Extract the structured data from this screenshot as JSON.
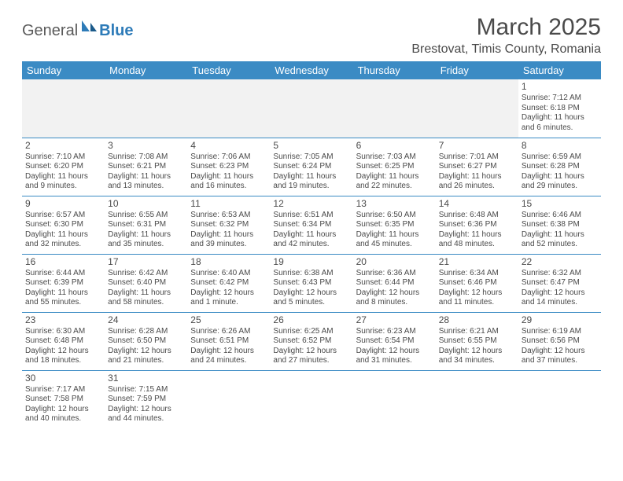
{
  "brand": {
    "general": "General",
    "blue": "Blue"
  },
  "title": "March 2025",
  "location": "Brestovat, Timis County, Romania",
  "colors": {
    "header_bg": "#3b8bc4",
    "header_text": "#ffffff",
    "empty_bg": "#f2f2f2",
    "row_border": "#3b8bc4",
    "body_text": "#4a4a4a",
    "logo_blue": "#2d7bb8"
  },
  "day_labels": [
    "Sunday",
    "Monday",
    "Tuesday",
    "Wednesday",
    "Thursday",
    "Friday",
    "Saturday"
  ],
  "weeks": [
    [
      null,
      null,
      null,
      null,
      null,
      null,
      {
        "n": "1",
        "sunrise": "7:12 AM",
        "sunset": "6:18 PM",
        "daylight": "11 hours and 6 minutes."
      }
    ],
    [
      {
        "n": "2",
        "sunrise": "7:10 AM",
        "sunset": "6:20 PM",
        "daylight": "11 hours and 9 minutes."
      },
      {
        "n": "3",
        "sunrise": "7:08 AM",
        "sunset": "6:21 PM",
        "daylight": "11 hours and 13 minutes."
      },
      {
        "n": "4",
        "sunrise": "7:06 AM",
        "sunset": "6:23 PM",
        "daylight": "11 hours and 16 minutes."
      },
      {
        "n": "5",
        "sunrise": "7:05 AM",
        "sunset": "6:24 PM",
        "daylight": "11 hours and 19 minutes."
      },
      {
        "n": "6",
        "sunrise": "7:03 AM",
        "sunset": "6:25 PM",
        "daylight": "11 hours and 22 minutes."
      },
      {
        "n": "7",
        "sunrise": "7:01 AM",
        "sunset": "6:27 PM",
        "daylight": "11 hours and 26 minutes."
      },
      {
        "n": "8",
        "sunrise": "6:59 AM",
        "sunset": "6:28 PM",
        "daylight": "11 hours and 29 minutes."
      }
    ],
    [
      {
        "n": "9",
        "sunrise": "6:57 AM",
        "sunset": "6:30 PM",
        "daylight": "11 hours and 32 minutes."
      },
      {
        "n": "10",
        "sunrise": "6:55 AM",
        "sunset": "6:31 PM",
        "daylight": "11 hours and 35 minutes."
      },
      {
        "n": "11",
        "sunrise": "6:53 AM",
        "sunset": "6:32 PM",
        "daylight": "11 hours and 39 minutes."
      },
      {
        "n": "12",
        "sunrise": "6:51 AM",
        "sunset": "6:34 PM",
        "daylight": "11 hours and 42 minutes."
      },
      {
        "n": "13",
        "sunrise": "6:50 AM",
        "sunset": "6:35 PM",
        "daylight": "11 hours and 45 minutes."
      },
      {
        "n": "14",
        "sunrise": "6:48 AM",
        "sunset": "6:36 PM",
        "daylight": "11 hours and 48 minutes."
      },
      {
        "n": "15",
        "sunrise": "6:46 AM",
        "sunset": "6:38 PM",
        "daylight": "11 hours and 52 minutes."
      }
    ],
    [
      {
        "n": "16",
        "sunrise": "6:44 AM",
        "sunset": "6:39 PM",
        "daylight": "11 hours and 55 minutes."
      },
      {
        "n": "17",
        "sunrise": "6:42 AM",
        "sunset": "6:40 PM",
        "daylight": "11 hours and 58 minutes."
      },
      {
        "n": "18",
        "sunrise": "6:40 AM",
        "sunset": "6:42 PM",
        "daylight": "12 hours and 1 minute."
      },
      {
        "n": "19",
        "sunrise": "6:38 AM",
        "sunset": "6:43 PM",
        "daylight": "12 hours and 5 minutes."
      },
      {
        "n": "20",
        "sunrise": "6:36 AM",
        "sunset": "6:44 PM",
        "daylight": "12 hours and 8 minutes."
      },
      {
        "n": "21",
        "sunrise": "6:34 AM",
        "sunset": "6:46 PM",
        "daylight": "12 hours and 11 minutes."
      },
      {
        "n": "22",
        "sunrise": "6:32 AM",
        "sunset": "6:47 PM",
        "daylight": "12 hours and 14 minutes."
      }
    ],
    [
      {
        "n": "23",
        "sunrise": "6:30 AM",
        "sunset": "6:48 PM",
        "daylight": "12 hours and 18 minutes."
      },
      {
        "n": "24",
        "sunrise": "6:28 AM",
        "sunset": "6:50 PM",
        "daylight": "12 hours and 21 minutes."
      },
      {
        "n": "25",
        "sunrise": "6:26 AM",
        "sunset": "6:51 PM",
        "daylight": "12 hours and 24 minutes."
      },
      {
        "n": "26",
        "sunrise": "6:25 AM",
        "sunset": "6:52 PM",
        "daylight": "12 hours and 27 minutes."
      },
      {
        "n": "27",
        "sunrise": "6:23 AM",
        "sunset": "6:54 PM",
        "daylight": "12 hours and 31 minutes."
      },
      {
        "n": "28",
        "sunrise": "6:21 AM",
        "sunset": "6:55 PM",
        "daylight": "12 hours and 34 minutes."
      },
      {
        "n": "29",
        "sunrise": "6:19 AM",
        "sunset": "6:56 PM",
        "daylight": "12 hours and 37 minutes."
      }
    ],
    [
      {
        "n": "30",
        "sunrise": "7:17 AM",
        "sunset": "7:58 PM",
        "daylight": "12 hours and 40 minutes."
      },
      {
        "n": "31",
        "sunrise": "7:15 AM",
        "sunset": "7:59 PM",
        "daylight": "12 hours and 44 minutes."
      },
      null,
      null,
      null,
      null,
      null
    ]
  ],
  "labels": {
    "sunrise_prefix": "Sunrise: ",
    "sunset_prefix": "Sunset: ",
    "daylight_prefix": "Daylight: "
  }
}
